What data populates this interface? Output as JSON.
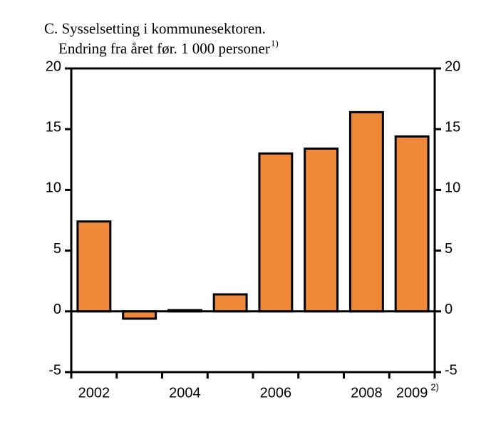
{
  "chart_data": {
    "type": "bar",
    "title": "C.  Sysselsetting i kommunesektoren.",
    "subtitle": "Endring fra året før. 1 000 personer",
    "subtitle_note": "1)",
    "categories": [
      "2002",
      null,
      "2004",
      null,
      "2006",
      null,
      "2008",
      "2009"
    ],
    "category_note": "2)",
    "values": [
      7.4,
      -0.6,
      0.1,
      1.4,
      13.0,
      13.4,
      16.4,
      14.4
    ],
    "color": "#f0883a",
    "ylim": [
      -5,
      20
    ],
    "yticks": [
      -5,
      0,
      5,
      10,
      15,
      20
    ],
    "y2lim": [
      -5,
      20
    ],
    "y2ticks": [
      -5,
      0,
      5,
      10,
      15,
      20
    ]
  }
}
